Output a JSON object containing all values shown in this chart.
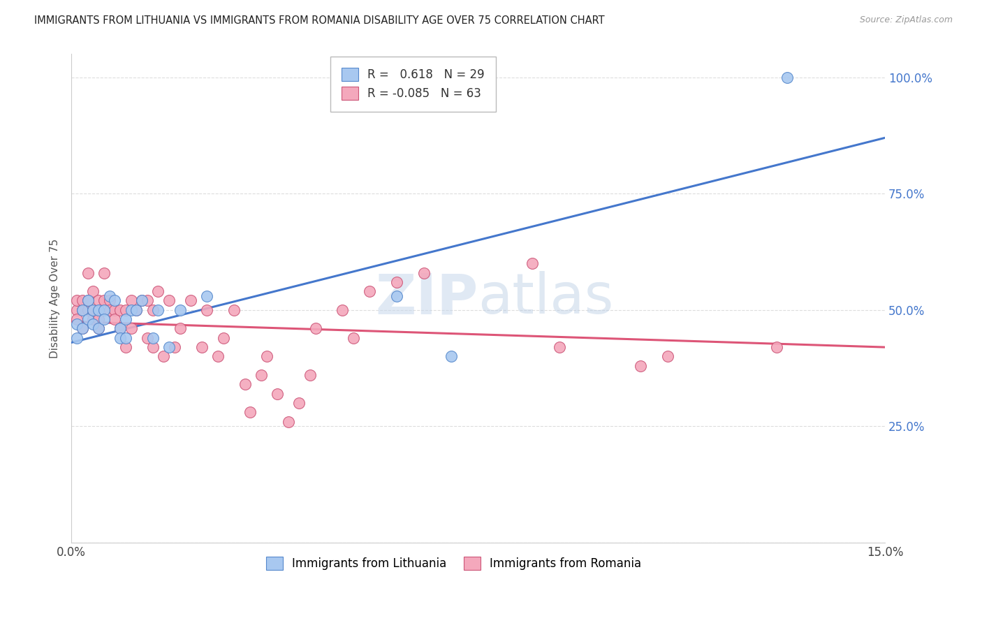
{
  "title": "IMMIGRANTS FROM LITHUANIA VS IMMIGRANTS FROM ROMANIA DISABILITY AGE OVER 75 CORRELATION CHART",
  "source": "Source: ZipAtlas.com",
  "ylabel": "Disability Age Over 75",
  "xmin": 0.0,
  "xmax": 0.15,
  "ymin": 0.0,
  "ymax": 1.05,
  "yticks": [
    0.0,
    0.25,
    0.5,
    0.75,
    1.0
  ],
  "ytick_labels": [
    "",
    "25.0%",
    "50.0%",
    "75.0%",
    "100.0%"
  ],
  "xticks": [
    0.0,
    0.03,
    0.06,
    0.09,
    0.12,
    0.15
  ],
  "xtick_labels": [
    "0.0%",
    "",
    "",
    "",
    "",
    "15.0%"
  ],
  "legend_r1_label": "R =   0.618   N = 29",
  "legend_r2_label": "R = -0.085   N = 63",
  "lithuania_color": "#A8C8F0",
  "romania_color": "#F4A8BC",
  "lithuania_edge_color": "#5588CC",
  "romania_edge_color": "#CC5577",
  "lithuania_line_color": "#4477CC",
  "romania_line_color": "#DD5577",
  "watermark_color": "#C8D8EC",
  "grid_color": "#DDDDDD",
  "lithuania_x": [
    0.001,
    0.001,
    0.002,
    0.002,
    0.003,
    0.003,
    0.004,
    0.004,
    0.005,
    0.005,
    0.006,
    0.006,
    0.007,
    0.008,
    0.009,
    0.009,
    0.01,
    0.01,
    0.011,
    0.012,
    0.013,
    0.015,
    0.016,
    0.018,
    0.02,
    0.025,
    0.06,
    0.07,
    0.132
  ],
  "lithuania_y": [
    0.47,
    0.44,
    0.46,
    0.5,
    0.52,
    0.48,
    0.5,
    0.47,
    0.5,
    0.46,
    0.5,
    0.48,
    0.53,
    0.52,
    0.46,
    0.44,
    0.48,
    0.44,
    0.5,
    0.5,
    0.52,
    0.44,
    0.5,
    0.42,
    0.5,
    0.53,
    0.53,
    0.4,
    1.0
  ],
  "romania_x": [
    0.001,
    0.001,
    0.001,
    0.002,
    0.002,
    0.002,
    0.003,
    0.003,
    0.003,
    0.004,
    0.004,
    0.004,
    0.005,
    0.005,
    0.005,
    0.006,
    0.006,
    0.007,
    0.007,
    0.008,
    0.008,
    0.009,
    0.009,
    0.01,
    0.01,
    0.011,
    0.011,
    0.012,
    0.013,
    0.014,
    0.014,
    0.015,
    0.015,
    0.016,
    0.017,
    0.018,
    0.019,
    0.02,
    0.022,
    0.024,
    0.025,
    0.027,
    0.028,
    0.03,
    0.032,
    0.033,
    0.035,
    0.036,
    0.038,
    0.04,
    0.042,
    0.044,
    0.045,
    0.05,
    0.052,
    0.055,
    0.06,
    0.065,
    0.085,
    0.09,
    0.105,
    0.11,
    0.13
  ],
  "romania_y": [
    0.5,
    0.52,
    0.48,
    0.5,
    0.52,
    0.46,
    0.5,
    0.52,
    0.58,
    0.54,
    0.5,
    0.48,
    0.52,
    0.48,
    0.46,
    0.58,
    0.52,
    0.52,
    0.5,
    0.5,
    0.48,
    0.5,
    0.46,
    0.5,
    0.42,
    0.52,
    0.46,
    0.5,
    0.52,
    0.44,
    0.52,
    0.5,
    0.42,
    0.54,
    0.4,
    0.52,
    0.42,
    0.46,
    0.52,
    0.42,
    0.5,
    0.4,
    0.44,
    0.5,
    0.34,
    0.28,
    0.36,
    0.4,
    0.32,
    0.26,
    0.3,
    0.36,
    0.46,
    0.5,
    0.44,
    0.54,
    0.56,
    0.58,
    0.6,
    0.42,
    0.38,
    0.4,
    0.42
  ],
  "lith_line_x0": 0.0,
  "lith_line_y0": 0.43,
  "lith_line_x1": 0.15,
  "lith_line_y1": 0.87,
  "rom_line_x0": 0.0,
  "rom_line_y0": 0.475,
  "rom_line_x1": 0.15,
  "rom_line_y1": 0.42
}
